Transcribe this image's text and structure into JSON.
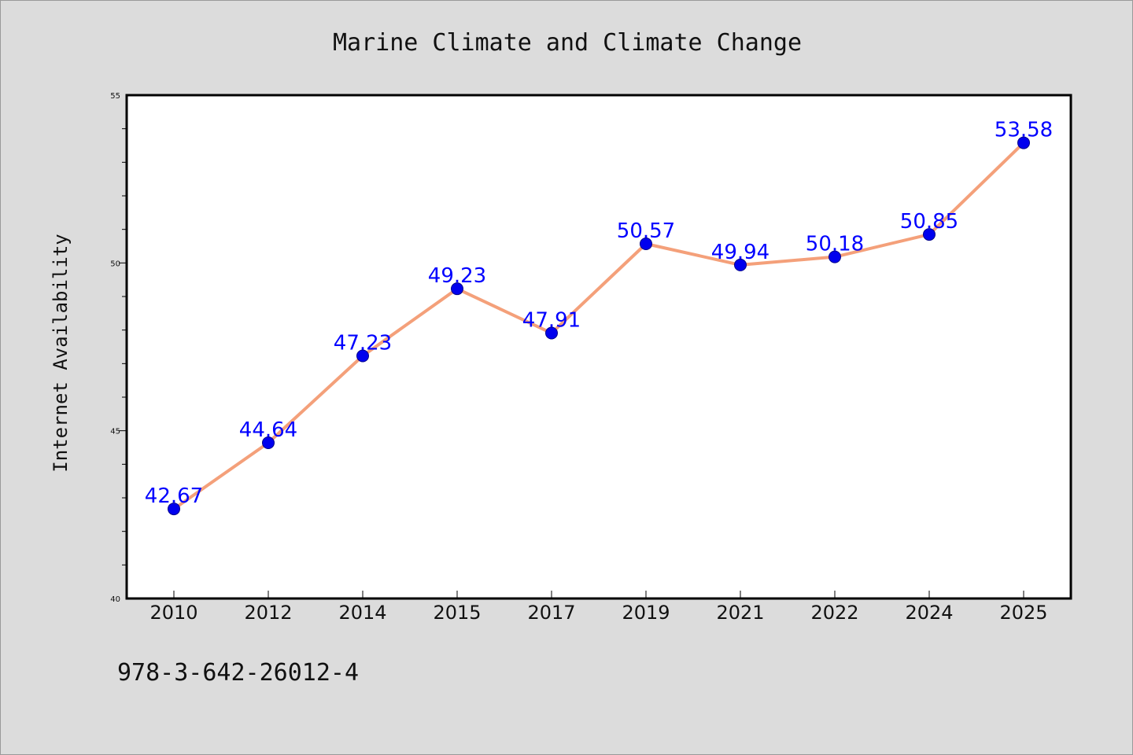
{
  "chart_data": {
    "type": "line",
    "title": "Marine Climate and Climate Change",
    "xlabel": "",
    "ylabel": "Internet Availability",
    "categories": [
      "2010",
      "2012",
      "2014",
      "2015",
      "2017",
      "2019",
      "2021",
      "2022",
      "2024",
      "2025"
    ],
    "series": [
      {
        "values": [
          42.67,
          44.64,
          47.23,
          49.23,
          47.91,
          50.57,
          49.94,
          50.18,
          50.85,
          53.58
        ],
        "labels": [
          "42.67",
          "44.64",
          "47.23",
          "49.23",
          "47.91",
          "50.57",
          "49.94",
          "50.18",
          "50.85",
          "53.58"
        ]
      }
    ],
    "ylim": [
      40,
      55
    ],
    "yticks": [
      "40",
      "45",
      "50",
      "55"
    ],
    "grid": false,
    "legend": "none",
    "colors": {
      "line": "#f4a07a",
      "marker": "#0000ee",
      "marker_edge": "#00008b",
      "data_label": "#0000ff",
      "plot_background": "#ffffff",
      "figure_background": "#dcdcdc"
    }
  },
  "footer": {
    "isbn": "978-3-642-26012-4"
  }
}
